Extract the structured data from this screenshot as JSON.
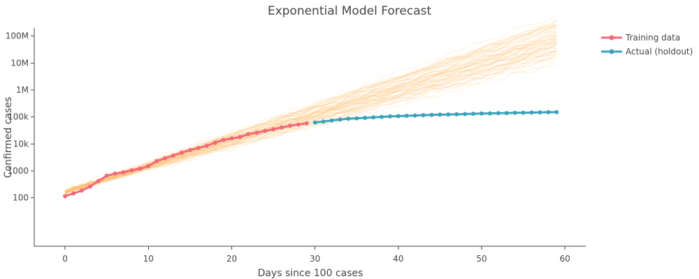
{
  "chart_data": {
    "type": "line",
    "title": "Exponential Model Forecast",
    "xlabel": "Days since 100 cases",
    "ylabel": "Confirmed cases",
    "xlim": [
      -3.7,
      62.5
    ],
    "ylim_log10": [
      1.6,
      200000000.0
    ],
    "y_scale": "log",
    "grid": false,
    "legend_position": "top-right",
    "x_ticks": [
      {
        "value": 0,
        "label": "0"
      },
      {
        "value": 10,
        "label": "10"
      },
      {
        "value": 20,
        "label": "20"
      },
      {
        "value": 30,
        "label": "30"
      },
      {
        "value": 40,
        "label": "40"
      },
      {
        "value": 50,
        "label": "50"
      },
      {
        "value": 60,
        "label": "60"
      }
    ],
    "y_ticks": [
      {
        "value": 100,
        "label": "100"
      },
      {
        "value": 1000,
        "label": "1000"
      },
      {
        "value": 10000,
        "label": "10k"
      },
      {
        "value": 100000,
        "label": "100k"
      },
      {
        "value": 1000000,
        "label": "1M"
      },
      {
        "value": 10000000,
        "label": "10M"
      },
      {
        "value": 100000000,
        "label": "100M"
      }
    ],
    "forecast_band": {
      "color": "#ffc06e",
      "x_start": 0,
      "x_end": 59,
      "start_value": 170,
      "end_value": 75000000,
      "sample_count": 60
    },
    "series": [
      {
        "name": "Training data",
        "color": "#ef6a7b",
        "x": [
          0,
          1,
          2,
          3,
          4,
          5,
          6,
          7,
          8,
          9,
          10,
          11,
          12,
          13,
          14,
          15,
          16,
          17,
          18,
          19,
          20,
          21,
          22,
          23,
          24,
          25,
          26,
          27,
          28,
          29
        ],
        "values": [
          115,
          145,
          185,
          260,
          420,
          660,
          790,
          880,
          1050,
          1200,
          1500,
          2300,
          2900,
          3700,
          4700,
          5900,
          7000,
          8500,
          11000,
          14000,
          16000,
          18000,
          23000,
          26000,
          30000,
          35000,
          41000,
          47000,
          52000,
          58000
        ]
      },
      {
        "name": "Actual (holdout)",
        "color": "#3aa3b9",
        "x": [
          30,
          31,
          32,
          33,
          34,
          35,
          36,
          37,
          38,
          39,
          40,
          41,
          42,
          43,
          44,
          45,
          46,
          47,
          48,
          49,
          50,
          51,
          52,
          53,
          54,
          55,
          56,
          57,
          58,
          59
        ],
        "values": [
          62000,
          67000,
          74000,
          80000,
          85000,
          89000,
          92000,
          96000,
          100000,
          104000,
          107000,
          110000,
          113000,
          116000,
          119000,
          121000,
          123000,
          125000,
          128000,
          131000,
          133000,
          135000,
          137000,
          139000,
          141000,
          143000,
          145000,
          147000,
          149000,
          151000
        ]
      }
    ]
  }
}
